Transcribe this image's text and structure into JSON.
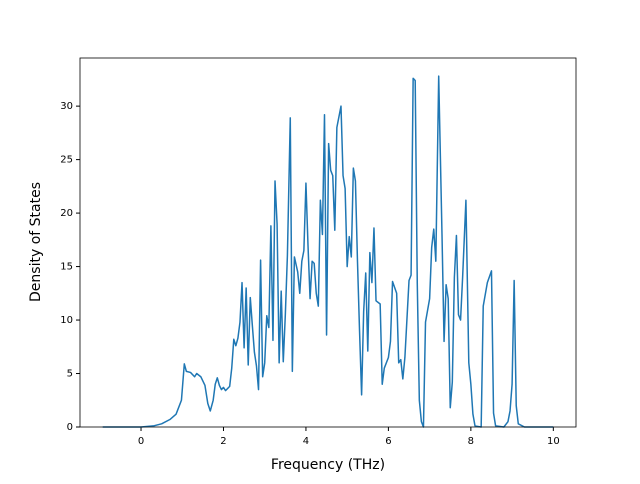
{
  "chart_data": {
    "type": "line",
    "xlabel": "Frequency (THz)",
    "ylabel": "Density of States",
    "x": [
      -0.93,
      0,
      0.3,
      0.5,
      0.7,
      0.85,
      0.95,
      0.98,
      1.05,
      1.1,
      1.2,
      1.3,
      1.35,
      1.45,
      1.55,
      1.62,
      1.68,
      1.75,
      1.8,
      1.85,
      1.9,
      1.95,
      2.0,
      2.05,
      2.15,
      2.2,
      2.25,
      2.3,
      2.35,
      2.4,
      2.45,
      2.5,
      2.55,
      2.6,
      2.65,
      2.7,
      2.75,
      2.8,
      2.85,
      2.9,
      2.95,
      3.0,
      3.05,
      3.1,
      3.15,
      3.2,
      3.25,
      3.3,
      3.35,
      3.4,
      3.45,
      3.5,
      3.55,
      3.62,
      3.67,
      3.72,
      3.8,
      3.85,
      3.9,
      3.95,
      4.0,
      4.05,
      4.1,
      4.15,
      4.2,
      4.25,
      4.3,
      4.35,
      4.4,
      4.45,
      4.5,
      4.55,
      4.6,
      4.65,
      4.7,
      4.75,
      4.85,
      4.9,
      4.95,
      5.0,
      5.05,
      5.1,
      5.15,
      5.2,
      5.25,
      5.3,
      5.35,
      5.4,
      5.45,
      5.5,
      5.55,
      5.6,
      5.65,
      5.7,
      5.8,
      5.85,
      5.9,
      6.0,
      6.05,
      6.1,
      6.2,
      6.25,
      6.3,
      6.35,
      6.4,
      6.5,
      6.55,
      6.6,
      6.65,
      6.7,
      6.75,
      6.8,
      6.85,
      6.9,
      7.0,
      7.05,
      7.1,
      7.15,
      7.22,
      7.3,
      7.35,
      7.4,
      7.45,
      7.5,
      7.55,
      7.6,
      7.65,
      7.7,
      7.75,
      7.8,
      7.88,
      7.95,
      8.0,
      8.05,
      8.1,
      8.25,
      8.3,
      8.4,
      8.5,
      8.55,
      8.6,
      8.8,
      8.9,
      8.95,
      9.0,
      9.05,
      9.1,
      9.15,
      9.3,
      10.0
    ],
    "values": [
      0,
      0,
      0.1,
      0.3,
      0.7,
      1.2,
      2.2,
      2.5,
      5.9,
      5.2,
      5.1,
      4.7,
      5.0,
      4.7,
      3.9,
      2.2,
      1.5,
      2.5,
      4.0,
      4.6,
      3.9,
      3.5,
      3.7,
      3.4,
      3.8,
      5.5,
      8.2,
      7.6,
      8.3,
      9.8,
      13.5,
      7.4,
      13.0,
      5.8,
      12.1,
      9.5,
      7.0,
      5.7,
      3.5,
      15.6,
      4.7,
      6.0,
      10.4,
      9.3,
      18.8,
      8.1,
      23.0,
      19.0,
      6.0,
      12.7,
      6.1,
      10.5,
      16.0,
      28.9,
      5.2,
      15.9,
      14.5,
      12.5,
      15.5,
      16.5,
      22.8,
      17.0,
      12.0,
      15.5,
      15.3,
      12.5,
      11.3,
      21.2,
      18.0,
      29.2,
      8.6,
      26.5,
      24.0,
      23.5,
      18.4,
      28.0,
      30.0,
      23.5,
      22.3,
      15.0,
      17.8,
      15.9,
      24.2,
      23.0,
      15.5,
      9.0,
      3.0,
      10.8,
      14.4,
      7.1,
      16.3,
      13.5,
      18.6,
      11.8,
      11.5,
      4.0,
      5.5,
      6.5,
      8.0,
      13.6,
      12.5,
      6.0,
      6.3,
      4.5,
      6.5,
      13.7,
      14.2,
      32.6,
      32.4,
      13.5,
      2.5,
      0.5,
      0,
      9.8,
      12.0,
      16.8,
      18.5,
      15.5,
      32.8,
      18.0,
      8.0,
      13.3,
      12.0,
      1.8,
      4.2,
      14.0,
      17.9,
      10.5,
      10.0,
      14.0,
      21.2,
      6.0,
      4.0,
      1.2,
      0.1,
      0,
      11.3,
      13.5,
      14.6,
      1.3,
      0.1,
      0,
      0.5,
      1.5,
      4.0,
      13.7,
      2.0,
      0.3,
      0,
      0
    ],
    "color": "#1f77b4",
    "xlim": [
      -1.48,
      10.55
    ],
    "ylim": [
      0,
      34.5
    ],
    "xticks": [
      0,
      2,
      4,
      6,
      8,
      10
    ],
    "yticks": [
      0,
      5,
      10,
      15,
      20,
      25,
      30
    ]
  }
}
